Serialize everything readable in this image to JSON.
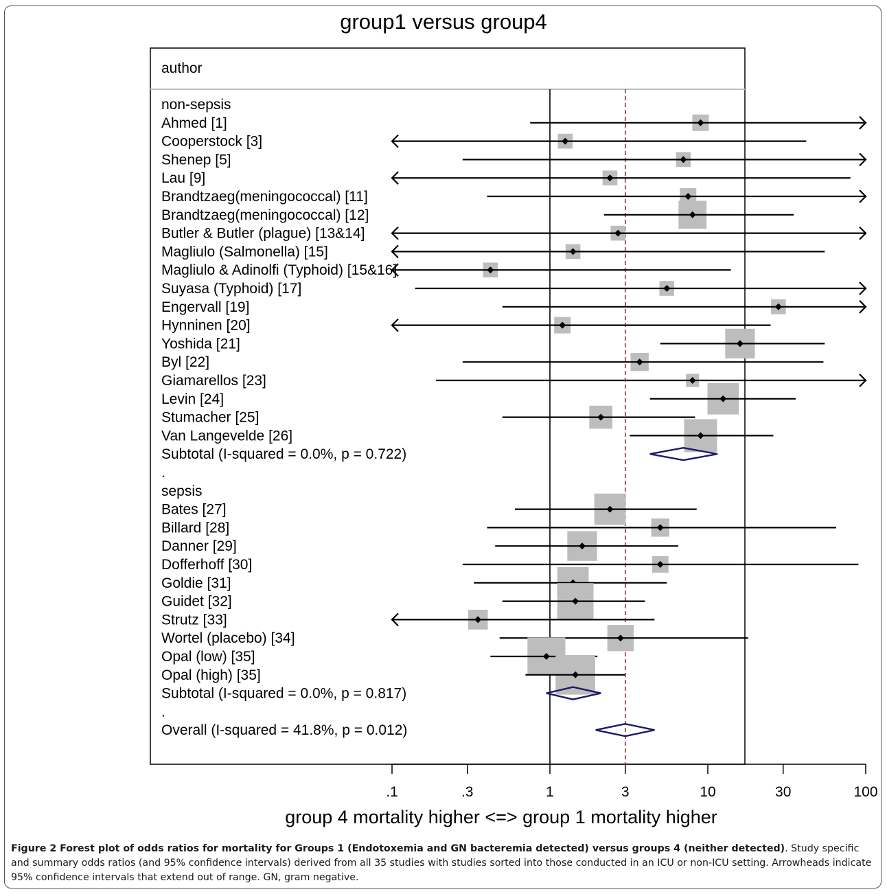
{
  "chart_data": {
    "type": "forest",
    "title": "group1 versus group4",
    "column_header": "author",
    "xlabel": "group 4 mortality higher <=> group 1 mortality higher",
    "x_scale": "log",
    "x_ticks": [
      0.1,
      0.3,
      1,
      3,
      10,
      30,
      100
    ],
    "x_tick_labels": [
      ".1",
      ".3",
      "1",
      "3",
      "10",
      "30",
      "100"
    ],
    "xlim": [
      0.1,
      100
    ],
    "null_line": 1,
    "overall_line": 3.0,
    "rows": [
      {
        "kind": "group",
        "label": "non-sepsis"
      },
      {
        "kind": "study",
        "label": "Ahmed [1]",
        "or": 9.0,
        "lo": 0.75,
        "hi": 100,
        "w": 1.0,
        "arrow_right": true
      },
      {
        "kind": "study",
        "label": "Cooperstock [3]",
        "or": 1.25,
        "lo": 0.1,
        "hi": 42,
        "w": 0.9,
        "arrow_left": true
      },
      {
        "kind": "study",
        "label": "Shenep [5]",
        "or": 7.0,
        "lo": 0.28,
        "hi": 100,
        "w": 0.9,
        "arrow_right": true
      },
      {
        "kind": "study",
        "label": "Lau [9]",
        "or": 2.4,
        "lo": 0.1,
        "hi": 80,
        "w": 0.9,
        "arrow_left": true
      },
      {
        "kind": "study",
        "label": "Brandtzaeg(meningococcal) [11]",
        "or": 7.5,
        "lo": 0.4,
        "hi": 100,
        "w": 1.0,
        "arrow_right": true
      },
      {
        "kind": "study",
        "label": "Brandtzaeg(meningococcal) [12]",
        "or": 8.0,
        "lo": 2.2,
        "hi": 35,
        "w": 1.7
      },
      {
        "kind": "study",
        "label": "Butler & Butler (plague) [13&14]",
        "or": 2.7,
        "lo": 0.1,
        "hi": 100,
        "w": 0.9,
        "arrow_left": true,
        "arrow_right": true
      },
      {
        "kind": "study",
        "label": "Magliulo (Salmonella) [15]",
        "or": 1.4,
        "lo": 0.1,
        "hi": 55,
        "w": 0.9,
        "arrow_left": true
      },
      {
        "kind": "study",
        "label": "Magliulo & Adinolfi (Typhoid) [15&16]",
        "or": 0.42,
        "lo": 0.1,
        "hi": 14,
        "w": 0.9,
        "arrow_left": true
      },
      {
        "kind": "study",
        "label": "Suyasa (Typhoid) [17]",
        "or": 5.5,
        "lo": 0.14,
        "hi": 100,
        "w": 0.9,
        "arrow_right": true
      },
      {
        "kind": "study",
        "label": "Engervall [19]",
        "or": 28,
        "lo": 0.5,
        "hi": 100,
        "w": 0.9,
        "arrow_right": true
      },
      {
        "kind": "study",
        "label": "Hynninen [20]",
        "or": 1.2,
        "lo": 0.1,
        "hi": 25,
        "w": 1.0,
        "arrow_left": true
      },
      {
        "kind": "study",
        "label": "Yoshida [21]",
        "or": 16,
        "lo": 5,
        "hi": 55,
        "w": 1.8
      },
      {
        "kind": "study",
        "label": "Byl [22]",
        "or": 3.7,
        "lo": 0.28,
        "hi": 54,
        "w": 1.1
      },
      {
        "kind": "study",
        "label": "Giamarellos [23]",
        "or": 8.0,
        "lo": 0.19,
        "hi": 100,
        "w": 0.8,
        "arrow_right": true
      },
      {
        "kind": "study",
        "label": "Levin [24]",
        "or": 12.5,
        "lo": 4.3,
        "hi": 36,
        "w": 1.9
      },
      {
        "kind": "study",
        "label": "Stumacher [25]",
        "or": 2.1,
        "lo": 0.5,
        "hi": 8.3,
        "w": 1.4
      },
      {
        "kind": "study",
        "label": "Van Langevelde [26]",
        "or": 9.0,
        "lo": 3.2,
        "hi": 26,
        "w": 2.0
      },
      {
        "kind": "subtotal",
        "label": "Subtotal  (I-squared = 0.0%, p = 0.722)",
        "or": 7.0,
        "lo": 4.3,
        "hi": 11.5
      },
      {
        "kind": "blank",
        "label": "."
      },
      {
        "kind": "group",
        "label": "sepsis"
      },
      {
        "kind": "study",
        "label": "Bates [27]",
        "or": 2.4,
        "lo": 0.6,
        "hi": 8.5,
        "w": 1.9
      },
      {
        "kind": "study",
        "label": "Billard [28]",
        "or": 5.0,
        "lo": 0.4,
        "hi": 65,
        "w": 1.1
      },
      {
        "kind": "study",
        "label": "Danner [29]",
        "or": 1.6,
        "lo": 0.45,
        "hi": 6.5,
        "w": 1.8
      },
      {
        "kind": "study",
        "label": "Dofferhoff [30]",
        "or": 5.0,
        "lo": 0.28,
        "hi": 90,
        "w": 1.0
      },
      {
        "kind": "study",
        "label": "Goldie [31]",
        "or": 1.4,
        "lo": 0.33,
        "hi": 5.5,
        "w": 1.9
      },
      {
        "kind": "study",
        "label": "Guidet [32]",
        "or": 1.45,
        "lo": 0.5,
        "hi": 4.0,
        "w": 2.2
      },
      {
        "kind": "study",
        "label": "Strutz [33]",
        "or": 0.35,
        "lo": 0.1,
        "hi": 4.6,
        "w": 1.2,
        "arrow_left": true
      },
      {
        "kind": "study",
        "label": "Wortel (placebo) [34]",
        "or": 2.8,
        "lo": 0.48,
        "hi": 18,
        "w": 1.6
      },
      {
        "kind": "study",
        "label": "Opal (low) [35]",
        "or": 0.95,
        "lo": 0.42,
        "hi": 2.0,
        "w": 2.3
      },
      {
        "kind": "study",
        "label": "Opal (high) [35]",
        "or": 1.45,
        "lo": 0.7,
        "hi": 3.0,
        "w": 2.4
      },
      {
        "kind": "subtotal",
        "label": "Subtotal  (I-squared = 0.0%, p = 0.817)",
        "or": 1.4,
        "lo": 0.95,
        "hi": 2.1
      },
      {
        "kind": "blank",
        "label": "."
      },
      {
        "kind": "overall",
        "label": "Overall  (I-squared = 41.8%, p = 0.012)",
        "or": 3.0,
        "lo": 1.95,
        "hi": 4.6
      }
    ]
  },
  "colors": {
    "ci_line": "#000000",
    "weight_box": "#bdbdbd",
    "point": "#000000",
    "diamond": "#1a1a66",
    "overall_line": "#8b2020"
  },
  "caption": {
    "bold": "Figure 2 Forest plot of odds ratios for mortality for Groups 1 (Endotoxemia and GN bacteremia detected) versus groups 4 (neither detected)",
    "text": ". Study specific and summary odds ratios (and 95% confidence intervals) derived from all 35 studies with studies sorted into those conducted in an ICU or non-ICU setting. Arrowheads indicate 95% confidence intervals that extend out of range. GN, gram negative."
  }
}
